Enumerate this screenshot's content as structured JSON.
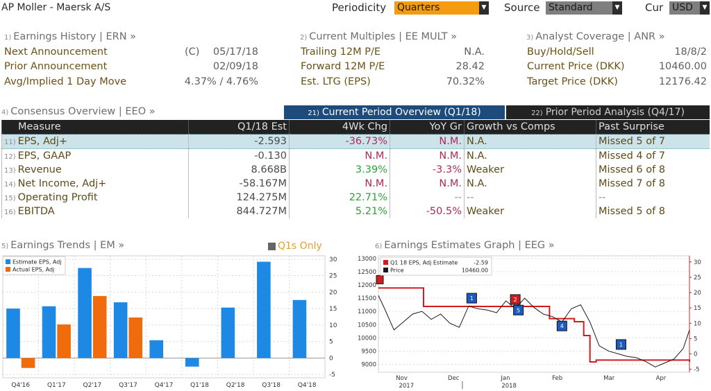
{
  "header": {
    "title": "AP Moller - Maersk A/S",
    "periodicity_label": "Periodicity",
    "periodicity_value": "Quarters",
    "source_label": "Source",
    "source_value": "Standard",
    "cur_label": "Cur",
    "cur_value": "USD"
  },
  "earnings_history": {
    "num": "1)",
    "title": "Earnings History | ERN »",
    "rows": [
      {
        "label": "Next Announcement",
        "flag": "(C)",
        "value": "05/17/18"
      },
      {
        "label": "Prior Announcement",
        "flag": "",
        "value": "02/09/18"
      },
      {
        "label": "Avg/Implied 1 Day Move",
        "flag": "",
        "value": "4.37% / 4.76%"
      }
    ]
  },
  "current_multiples": {
    "num": "2)",
    "title": "Current Multiples | EE MULT »",
    "rows": [
      {
        "label": "Trailing 12M P/E",
        "value": "N.A."
      },
      {
        "label": "Forward 12M P/E",
        "value": "28.42"
      },
      {
        "label": "Est. LTG (EPS)",
        "value": "70.32%"
      }
    ]
  },
  "analyst_coverage": {
    "num": "3)",
    "title": "Analyst Coverage | ANR »",
    "rows": [
      {
        "label": "Buy/Hold/Sell",
        "value": "18/8/2"
      },
      {
        "label": "Current Price (DKK)",
        "value": "10460.00"
      },
      {
        "label": "Target Price (DKK)",
        "value": "12176.42"
      }
    ]
  },
  "consensus": {
    "num": "4)",
    "title": "Consensus Overview | EEO »",
    "tab_current_num": "21)",
    "tab_current": "Current Period Overview (Q1/18)",
    "tab_prior_num": "22)",
    "tab_prior": "Prior Period Analysis (Q4/17)",
    "columns": [
      "Measure",
      "Q1/18 Est",
      "4Wk Chg",
      "YoY Gr",
      "Growth vs Comps",
      "Past Surprise"
    ],
    "rows": [
      {
        "num": "11)",
        "measure": "EPS, Adj+",
        "est": "-2.593",
        "chg": "-36.73%",
        "yoy": "N.M.",
        "comps": "N.A.",
        "surprise": "Missed 5 of 7"
      },
      {
        "num": "12)",
        "measure": "EPS, GAAP",
        "est": "-0.130",
        "chg": "N.M.",
        "yoy": "N.M.",
        "comps": "N.A.",
        "surprise": "Missed 4 of 7"
      },
      {
        "num": "13)",
        "measure": "Revenue",
        "est": "8.668B",
        "chg": "3.39%",
        "yoy": "-3.3%",
        "comps": "Weaker",
        "surprise": "Missed 6 of 8"
      },
      {
        "num": "14)",
        "measure": "Net Income, Adj+",
        "est": "-58.167M",
        "chg": "N.M.",
        "yoy": "N.M.",
        "comps": "N.A.",
        "surprise": "Missed 7 of 8"
      },
      {
        "num": "15)",
        "measure": "Operating Profit",
        "est": "124.275M",
        "chg": "22.71%",
        "yoy": "--",
        "comps": "--",
        "surprise": "--"
      },
      {
        "num": "16)",
        "measure": "EBITDA",
        "est": "844.727M",
        "chg": "5.21%",
        "yoy": "-50.5%",
        "comps": "Weaker",
        "surprise": "Missed 5 of 8"
      }
    ]
  },
  "earnings_trends": {
    "num": "5)",
    "title": "Earnings Trends | EM »",
    "toggle_label": "Q1s Only"
  },
  "earnings_graph": {
    "num": "6)",
    "title": "Earnings Estimates Graph | EEG »"
  },
  "colors": {
    "estimate": "#1e88e5",
    "actual": "#f06b0c",
    "eps_line": "#d21a1a",
    "price_line": "#1a1a1a",
    "axis_red": "#cc2222"
  },
  "chart_data": [
    {
      "type": "bar",
      "categories": [
        "Q4'16",
        "Q1'17",
        "Q2'17",
        "Q3'17",
        "Q4'17",
        "Q1'18",
        "Q2'18",
        "Q3'18",
        "Q4'18"
      ],
      "series": [
        {
          "name": "Estimate EPS, Adj",
          "values": [
            15,
            15.7,
            27.3,
            16.9,
            5.4,
            -2.6,
            15.3,
            29.2,
            17.6
          ]
        },
        {
          "name": "Actual EPS, Adj",
          "values": [
            -3,
            10.2,
            18.8,
            12.3,
            null,
            null,
            null,
            null,
            null
          ]
        }
      ],
      "ylim": [
        -6,
        31
      ],
      "yticks": [
        "-5",
        "0",
        "5",
        "10",
        "15",
        "20",
        "25",
        "30"
      ]
    },
    {
      "type": "line",
      "x_labels": [
        "Nov",
        "Dec",
        "Jan",
        "Feb",
        "Mar",
        "Apr"
      ],
      "year_labels": [
        "2017",
        "2018"
      ],
      "left_ticks": [
        "9000",
        "9500",
        "10000",
        "10500",
        "11000",
        "11500",
        "12000",
        "12500",
        "13000"
      ],
      "right_ticks": [
        "-5",
        "0",
        "5",
        "10",
        "15",
        "20",
        "25",
        "30"
      ],
      "left_ylim": [
        8700,
        13100
      ],
      "right_ylim": [
        -6,
        32
      ],
      "legend": [
        {
          "name": "Q1 18 EPS, Adj Estimate",
          "value": "-2.59"
        },
        {
          "name": "Price",
          "value": "10460.00"
        }
      ],
      "series": [
        {
          "name": "Q1 18 EPS, Adj Estimate",
          "axis": "right",
          "x": [
            0,
            0.14,
            0.145,
            0.54,
            0.55,
            0.62,
            0.63,
            0.655,
            0.66,
            0.68,
            0.7,
            1.0
          ],
          "values": [
            21.5,
            21.5,
            15.5,
            15.5,
            11.5,
            11.5,
            10.5,
            10.5,
            6.0,
            -2.6,
            -2.0,
            -2.6
          ]
        },
        {
          "name": "Price",
          "axis": "left",
          "x": [
            0,
            0.02,
            0.05,
            0.08,
            0.11,
            0.14,
            0.17,
            0.2,
            0.23,
            0.26,
            0.29,
            0.32,
            0.35,
            0.38,
            0.41,
            0.44,
            0.47,
            0.5,
            0.53,
            0.56,
            0.59,
            0.62,
            0.65,
            0.68,
            0.71,
            0.74,
            0.77,
            0.8,
            0.83,
            0.86,
            0.89,
            0.92,
            0.95,
            0.98,
            1.0
          ],
          "values": [
            11600,
            11100,
            10300,
            10600,
            10900,
            11000,
            10700,
            10900,
            10550,
            10400,
            11200,
            11100,
            11050,
            10950,
            11400,
            11100,
            11500,
            11150,
            10900,
            10800,
            10600,
            11100,
            11250,
            10600,
            9700,
            9500,
            9400,
            9300,
            9250,
            9100,
            8900,
            9050,
            9200,
            9600,
            10300
          ]
        }
      ],
      "markers": [
        {
          "label": "1",
          "kind": "blue",
          "x": 0.3,
          "y": 11500
        },
        {
          "label": "2",
          "kind": "red",
          "x": 0.44,
          "y": 11450
        },
        {
          "label": "5",
          "kind": "blue",
          "x": 0.45,
          "y": 11050
        },
        {
          "label": "4",
          "kind": "blue",
          "x": 0.59,
          "y": 10450
        },
        {
          "label": "1",
          "kind": "blue",
          "x": 0.78,
          "y": 9750
        }
      ]
    }
  ]
}
